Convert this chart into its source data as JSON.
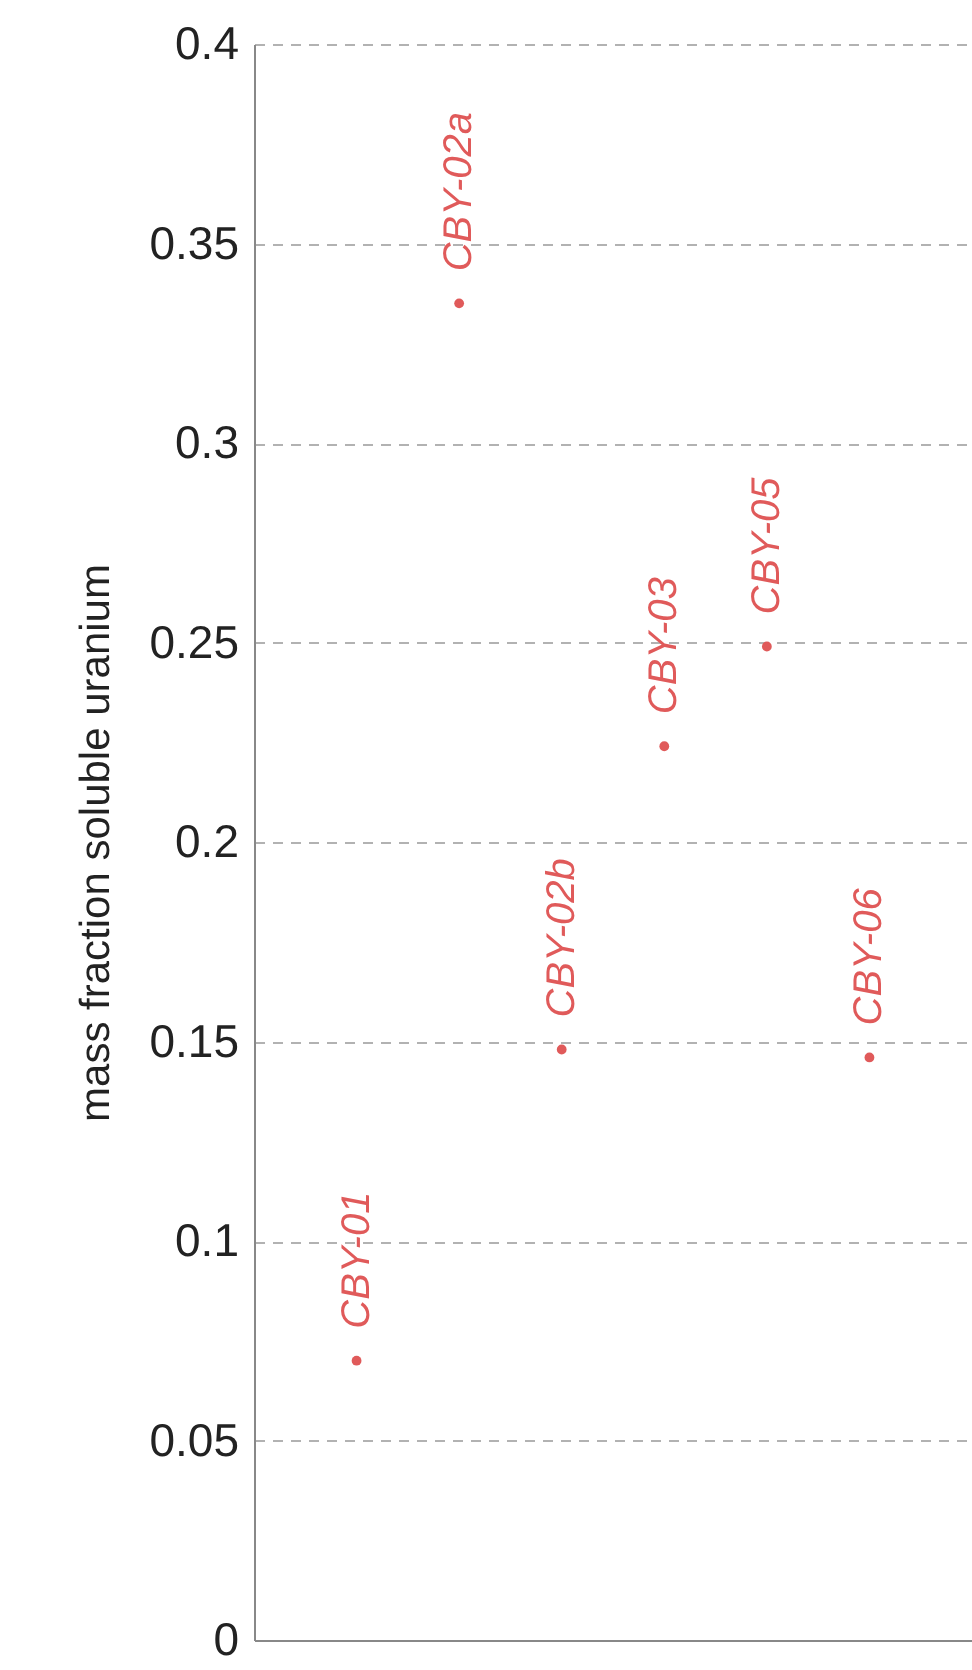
{
  "chart_data": {
    "type": "scatter",
    "ylabel": "mass fraction soluble uranium",
    "categories": [
      null,
      null,
      null,
      null,
      null,
      null
    ],
    "series": [
      {
        "color": "#e05a5a",
        "values": [
          0.07,
          0.335,
          0.148,
          0.224,
          0.249,
          0.146
        ]
      }
    ],
    "annotations": [
      {
        "text": "CBY-01",
        "y": 0.07
      },
      {
        "text": "CBY-02a",
        "y": 0.335
      },
      {
        "text": "CBY-02b",
        "y": 0.148
      },
      {
        "text": "CBY-03",
        "y": 0.224
      },
      {
        "text": "CBY-05",
        "y": 0.249
      },
      {
        "text": "CBY-06",
        "y": 0.146
      }
    ],
    "ylim": [
      0,
      0.4
    ],
    "yticks": [
      0,
      0.05,
      0.1,
      0.15,
      0.2,
      0.25,
      0.3,
      0.35,
      0.4
    ],
    "grid": "y",
    "marker": "circle",
    "tick_labels": "y"
  }
}
